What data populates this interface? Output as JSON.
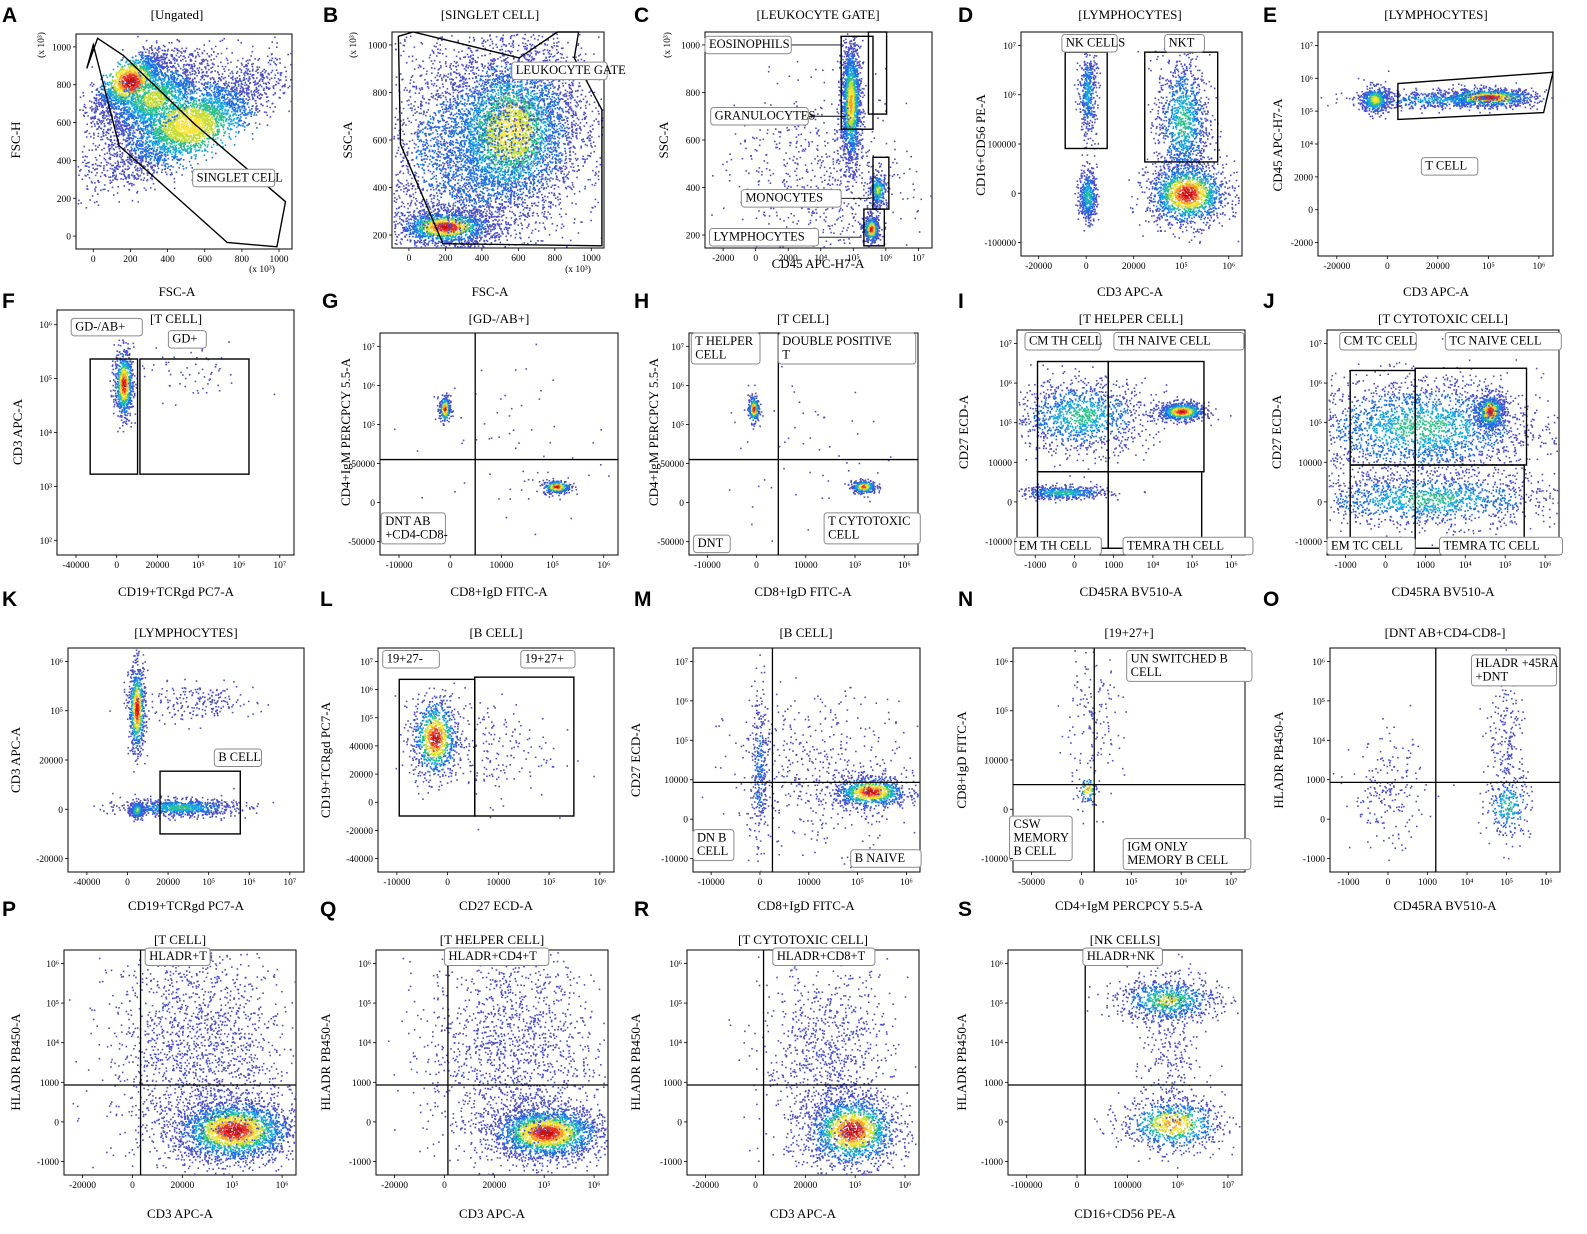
{
  "figure": {
    "colors": {
      "background": "#ffffff",
      "density_scale": [
        "#4b4fc6",
        "#1f6fe0",
        "#17a7df",
        "#2cc08c",
        "#c6dc36",
        "#f7e43c",
        "#f2a22a",
        "#e8332a",
        "#c80f0f"
      ],
      "gate_stroke": "#000000",
      "gate_label_border": "#8a8a8a"
    }
  },
  "chart_data": [
    {
      "id": "A",
      "letter": "A",
      "type": "scatter",
      "title": "[Ungated]",
      "xlabel": "FSC-A",
      "ylabel": "FSC-H",
      "x_unit": "(x 10³)",
      "y_unit": "(x 10³)",
      "x_ticks": [
        "0",
        "200",
        "400",
        "600",
        "800",
        "1000"
      ],
      "y_ticks": [
        "0",
        "200",
        "400",
        "600",
        "800",
        "1000"
      ],
      "xlim": [
        0,
        1150
      ],
      "ylim": [
        0,
        1000
      ],
      "gates": [
        {
          "label": "SINGLET CELL"
        }
      ]
    },
    {
      "id": "B",
      "letter": "B",
      "type": "scatter",
      "title": "[SINGLET CELL]",
      "xlabel": "FSC-A",
      "ylabel": "SSC-A",
      "x_unit": "(x 10³)",
      "y_unit": "(x 10³)",
      "x_ticks": [
        "0",
        "200",
        "400",
        "600",
        "800",
        "1000"
      ],
      "y_ticks": [
        "200",
        "400",
        "600",
        "800",
        "1000"
      ],
      "xlim": [
        0,
        1150
      ],
      "ylim": [
        0,
        1100
      ],
      "gates": [
        {
          "label": "LEUKOCYTE GATE"
        }
      ]
    },
    {
      "id": "C",
      "letter": "C",
      "type": "scatter",
      "title": "[LEUKOCYTE GATE]",
      "xlabel": "CD45 APC-H7-A",
      "ylabel": "SSC-A",
      "y_unit": "(x 10³)",
      "x_ticks": [
        "-2000",
        "0",
        "2000",
        "10⁴",
        "10⁵",
        "10⁶",
        "10⁷"
      ],
      "y_ticks": [
        "200",
        "400",
        "600",
        "800",
        "1000"
      ],
      "gates": [
        {
          "label": "EOSINOPHILS"
        },
        {
          "label": "GRANULOCYTES"
        },
        {
          "label": "MONOCYTES"
        },
        {
          "label": "LYMPHOCYTES"
        }
      ]
    },
    {
      "id": "D",
      "letter": "D",
      "type": "scatter",
      "title": "[LYMPHOCYTES]",
      "xlabel": "CD3 APC-A",
      "ylabel": "CD16+CD56 PE-A",
      "x_ticks": [
        "-20000",
        "0",
        "20000",
        "10⁵",
        "10⁶"
      ],
      "y_ticks": [
        "-100000",
        "0",
        "100000",
        "10⁶",
        "10⁷"
      ],
      "gates": [
        {
          "label": "NK CELLS"
        },
        {
          "label": "NKT"
        }
      ]
    },
    {
      "id": "E",
      "letter": "E",
      "type": "scatter",
      "title": "[LYMPHOCYTES]",
      "xlabel": "CD3 APC-A",
      "ylabel": "CD45 APC-H7-A",
      "x_ticks": [
        "-20000",
        "0",
        "20000",
        "10⁵",
        "10⁶"
      ],
      "y_ticks": [
        "-2000",
        "0",
        "2000",
        "10⁴",
        "10⁵",
        "10⁶",
        "10⁷"
      ],
      "gates": [
        {
          "label": "T CELL"
        }
      ]
    },
    {
      "id": "F",
      "letter": "F",
      "type": "scatter",
      "title": "[T CELL]",
      "xlabel": "CD19+TCRgd PC7-A",
      "ylabel": "CD3 APC-A",
      "x_ticks": [
        "-40000",
        "0",
        "20000",
        "10⁵",
        "10⁶",
        "10⁷"
      ],
      "y_ticks": [
        "10²",
        "10³",
        "10⁴",
        "10⁵",
        "10⁶"
      ],
      "gates": [
        {
          "label": "GD-/AB+"
        },
        {
          "label": "GD+"
        }
      ]
    },
    {
      "id": "G",
      "letter": "G",
      "type": "scatter",
      "title": "[GD-/AB+]",
      "xlabel": "CD8+IgD FITC-A",
      "ylabel": "CD4+IgM  PERCPCY 5.5-A",
      "x_ticks": [
        "-10000",
        "0",
        "10000",
        "10⁵",
        "10⁶"
      ],
      "y_ticks": [
        "-50000",
        "0",
        "50000",
        "10⁵",
        "10⁶",
        "10⁷"
      ],
      "gates": [
        {
          "label": "DNT AB\n+CD4-CD8-"
        }
      ]
    },
    {
      "id": "H",
      "letter": "H",
      "type": "scatter",
      "title": "[T CELL]",
      "xlabel": "CD8+IgD FITC-A",
      "ylabel": "CD4+IgM  PERCPCY 5.5-A",
      "x_ticks": [
        "-10000",
        "0",
        "10000",
        "10⁵",
        "10⁶"
      ],
      "y_ticks": [
        "-50000",
        "0",
        "50000",
        "10⁵",
        "10⁶",
        "10⁷"
      ],
      "gates": [
        {
          "label": "T HELPER\nCELL"
        },
        {
          "label": "DOUBLE POSITIVE\nT"
        },
        {
          "label": "DNT"
        },
        {
          "label": "T CYTOTOXIC\nCELL"
        }
      ]
    },
    {
      "id": "I",
      "letter": "I",
      "type": "scatter",
      "title": "[T HELPER CELL]",
      "xlabel": "CD45RA BV510-A",
      "ylabel": "CD27 ECD-A",
      "x_ticks": [
        "-1000",
        "0",
        "1000",
        "10⁴",
        "10⁵",
        "10⁶"
      ],
      "y_ticks": [
        "-10000",
        "0",
        "10000",
        "10⁵",
        "10⁶",
        "10⁷"
      ],
      "gates": [
        {
          "label": "CM TH CELL"
        },
        {
          "label": "TH NAIVE CELL"
        },
        {
          "label": "EM TH CELL"
        },
        {
          "label": "TEMRA TH CELL"
        }
      ]
    },
    {
      "id": "J",
      "letter": "J",
      "type": "scatter",
      "title": "[T CYTOTOXIC CELL]",
      "xlabel": "CD45RA BV510-A",
      "ylabel": "CD27 ECD-A",
      "x_ticks": [
        "-1000",
        "0",
        "1000",
        "10⁴",
        "10⁵",
        "10⁶"
      ],
      "y_ticks": [
        "-10000",
        "0",
        "10000",
        "10⁵",
        "10⁶",
        "10⁷"
      ],
      "gates": [
        {
          "label": "CM TC CELL"
        },
        {
          "label": "TC NAIVE CELL"
        },
        {
          "label": "EM TC CELL"
        },
        {
          "label": "TEMRA TC CELL"
        }
      ]
    },
    {
      "id": "K",
      "letter": "K",
      "type": "scatter",
      "title": "[LYMPHOCYTES]",
      "xlabel": "CD19+TCRgd PC7-A",
      "ylabel": "CD3 APC-A",
      "x_ticks": [
        "-40000",
        "0",
        "20000",
        "10⁵",
        "10⁶",
        "10⁷"
      ],
      "y_ticks": [
        "-20000",
        "0",
        "20000",
        "10⁵",
        "10⁶"
      ],
      "gates": [
        {
          "label": "B CELL"
        }
      ]
    },
    {
      "id": "L",
      "letter": "L",
      "type": "scatter",
      "title": "[B CELL]",
      "xlabel": "CD27 ECD-A",
      "ylabel": "CD19+TCRgd PC7-A",
      "x_ticks": [
        "-10000",
        "0",
        "10000",
        "10⁵",
        "10⁶"
      ],
      "y_ticks": [
        "-40000",
        "-20000",
        "0",
        "20000",
        "40000",
        "10⁵",
        "10⁶",
        "10⁷"
      ],
      "gates": [
        {
          "label": "19+27-"
        },
        {
          "label": "19+27+"
        }
      ]
    },
    {
      "id": "M",
      "letter": "M",
      "type": "scatter",
      "title": "[B CELL]",
      "xlabel": "CD8+IgD FITC-A",
      "ylabel": "CD27 ECD-A",
      "x_ticks": [
        "-10000",
        "0",
        "10000",
        "10⁵",
        "10⁶"
      ],
      "y_ticks": [
        "-10000",
        "0",
        "10000",
        "10⁵",
        "10⁶",
        "10⁷"
      ],
      "gates": [
        {
          "label": "DN B\nCELL"
        },
        {
          "label": "B NAIVE"
        }
      ]
    },
    {
      "id": "N",
      "letter": "N",
      "type": "scatter",
      "title": "[19+27+]",
      "xlabel": "CD4+IgM  PERCPCY 5.5-A",
      "ylabel": "CD8+IgD FITC-A",
      "x_ticks": [
        "-50000",
        "0",
        "10⁵",
        "10⁶",
        "10⁷"
      ],
      "y_ticks": [
        "-10000",
        "0",
        "10000",
        "10⁵",
        "10⁶"
      ],
      "gates": [
        {
          "label": "UN SWITCHED B\nCELL"
        },
        {
          "label": "CSW\nMEMORY\nB CELL"
        },
        {
          "label": "IGM ONLY\nMEMORY B CELL"
        }
      ]
    },
    {
      "id": "O",
      "letter": "O",
      "type": "scatter",
      "title": "[DNT AB+CD4-CD8-]",
      "xlabel": "CD45RA BV510-A",
      "ylabel": "HLADR PB450-A",
      "x_ticks": [
        "-1000",
        "0",
        "1000",
        "10⁴",
        "10⁵",
        "10⁶"
      ],
      "y_ticks": [
        "-1000",
        "0",
        "1000",
        "10⁴",
        "10⁵",
        "10⁶"
      ],
      "gates": [
        {
          "label": "HLADR +45RA\n+DNT"
        }
      ]
    },
    {
      "id": "P",
      "letter": "P",
      "type": "scatter",
      "title": "[T CELL]",
      "xlabel": "CD3 APC-A",
      "ylabel": "HLADR PB450-A",
      "x_ticks": [
        "-20000",
        "0",
        "20000",
        "10⁵",
        "10⁶"
      ],
      "y_ticks": [
        "-1000",
        "0",
        "1000",
        "10⁴",
        "10⁵",
        "10⁶"
      ],
      "gates": [
        {
          "label": "HLADR+T"
        }
      ]
    },
    {
      "id": "Q",
      "letter": "Q",
      "type": "scatter",
      "title": "[T HELPER CELL]",
      "xlabel": "CD3 APC-A",
      "ylabel": "HLADR PB450-A",
      "x_ticks": [
        "-20000",
        "0",
        "20000",
        "10⁵",
        "10⁶"
      ],
      "y_ticks": [
        "-1000",
        "0",
        "1000",
        "10⁴",
        "10⁵",
        "10⁶"
      ],
      "gates": [
        {
          "label": "HLADR+CD4+T"
        }
      ]
    },
    {
      "id": "R",
      "letter": "R",
      "type": "scatter",
      "title": "[T CYTOTOXIC CELL]",
      "xlabel": "CD3 APC-A",
      "ylabel": "HLADR PB450-A",
      "x_ticks": [
        "-20000",
        "0",
        "20000",
        "10⁵",
        "10⁶"
      ],
      "y_ticks": [
        "-1000",
        "0",
        "1000",
        "10⁴",
        "10⁵",
        "10⁶"
      ],
      "gates": [
        {
          "label": "HLADR+CD8+T"
        }
      ]
    },
    {
      "id": "S",
      "letter": "S",
      "type": "scatter",
      "title": "[NK CELLS]",
      "xlabel": "CD16+CD56 PE-A",
      "ylabel": "HLADR PB450-A",
      "x_ticks": [
        "-100000",
        "0",
        "100000",
        "10⁶",
        "10⁷"
      ],
      "y_ticks": [
        "-1000",
        "0",
        "1000",
        "10⁴",
        "10⁵",
        "10⁶"
      ],
      "gates": [
        {
          "label": "HLADR+NK"
        }
      ]
    }
  ]
}
